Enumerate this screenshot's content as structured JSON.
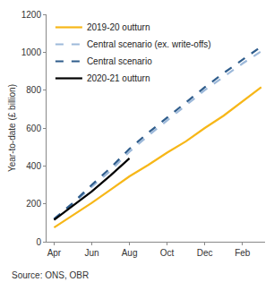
{
  "chart_data": {
    "type": "line",
    "categories": [
      "Apr",
      null,
      "Jun",
      null,
      "Aug",
      null,
      "Oct",
      null,
      "Dec",
      null,
      "Feb",
      null
    ],
    "series": [
      {
        "name": "2019-20 outturn",
        "color": "#F7B718",
        "line_style": "solid",
        "values": [
          75,
          140,
          205,
          275,
          345,
          405,
          470,
          530,
          600,
          665,
          740,
          815
        ]
      },
      {
        "name": "Central scenario (ex. write-offs)",
        "color": "#9DB9DA",
        "line_style": "dashed",
        "values": [
          120,
          200,
          290,
          375,
          475,
          560,
          640,
          720,
          800,
          870,
          940,
          1005
        ]
      },
      {
        "name": "Central scenario",
        "color": "#2F5D8C",
        "line_style": "dashed",
        "values": [
          120,
          205,
          300,
          390,
          490,
          575,
          655,
          735,
          815,
          890,
          960,
          1030
        ]
      },
      {
        "name": "2020-21 outturn",
        "color": "#000000",
        "line_style": "solid",
        "values": [
          115,
          190,
          265,
          350,
          440,
          null,
          null,
          null,
          null,
          null,
          null,
          null
        ]
      }
    ],
    "y_label": "Year-to-date (£ billion)",
    "ylim": [
      0,
      1200
    ],
    "yticks": [
      0,
      200,
      400,
      600,
      800,
      1000,
      1200
    ],
    "grid": false,
    "legend": "upper left",
    "annotations": [
      "Source: ONS, OBR"
    ]
  }
}
